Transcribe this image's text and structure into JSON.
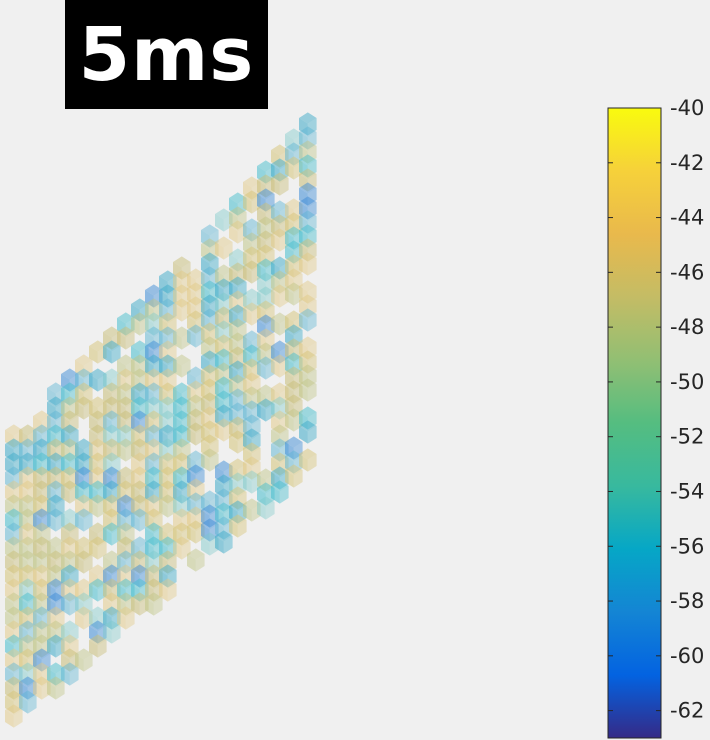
{
  "title": "5ms",
  "colors": {
    "background": "#f0f0f0",
    "title_box": "#000000",
    "title_text": "#ffffff",
    "axis": "#262626"
  },
  "chart_data": {
    "type": "heatmap",
    "title": "5ms",
    "colormap": "parula",
    "colorbar": {
      "location": "right",
      "range": [
        -63,
        -40
      ],
      "ticks": [
        -40,
        -42,
        -44,
        -46,
        -48,
        -50,
        -52,
        -54,
        -56,
        -58,
        -60,
        -62
      ],
      "tick_labels": [
        "-40",
        "-42",
        "-44",
        "-46",
        "-48",
        "-50",
        "-52",
        "-54",
        "-56",
        "-58",
        "-60",
        "-62"
      ]
    },
    "grid": false
  }
}
